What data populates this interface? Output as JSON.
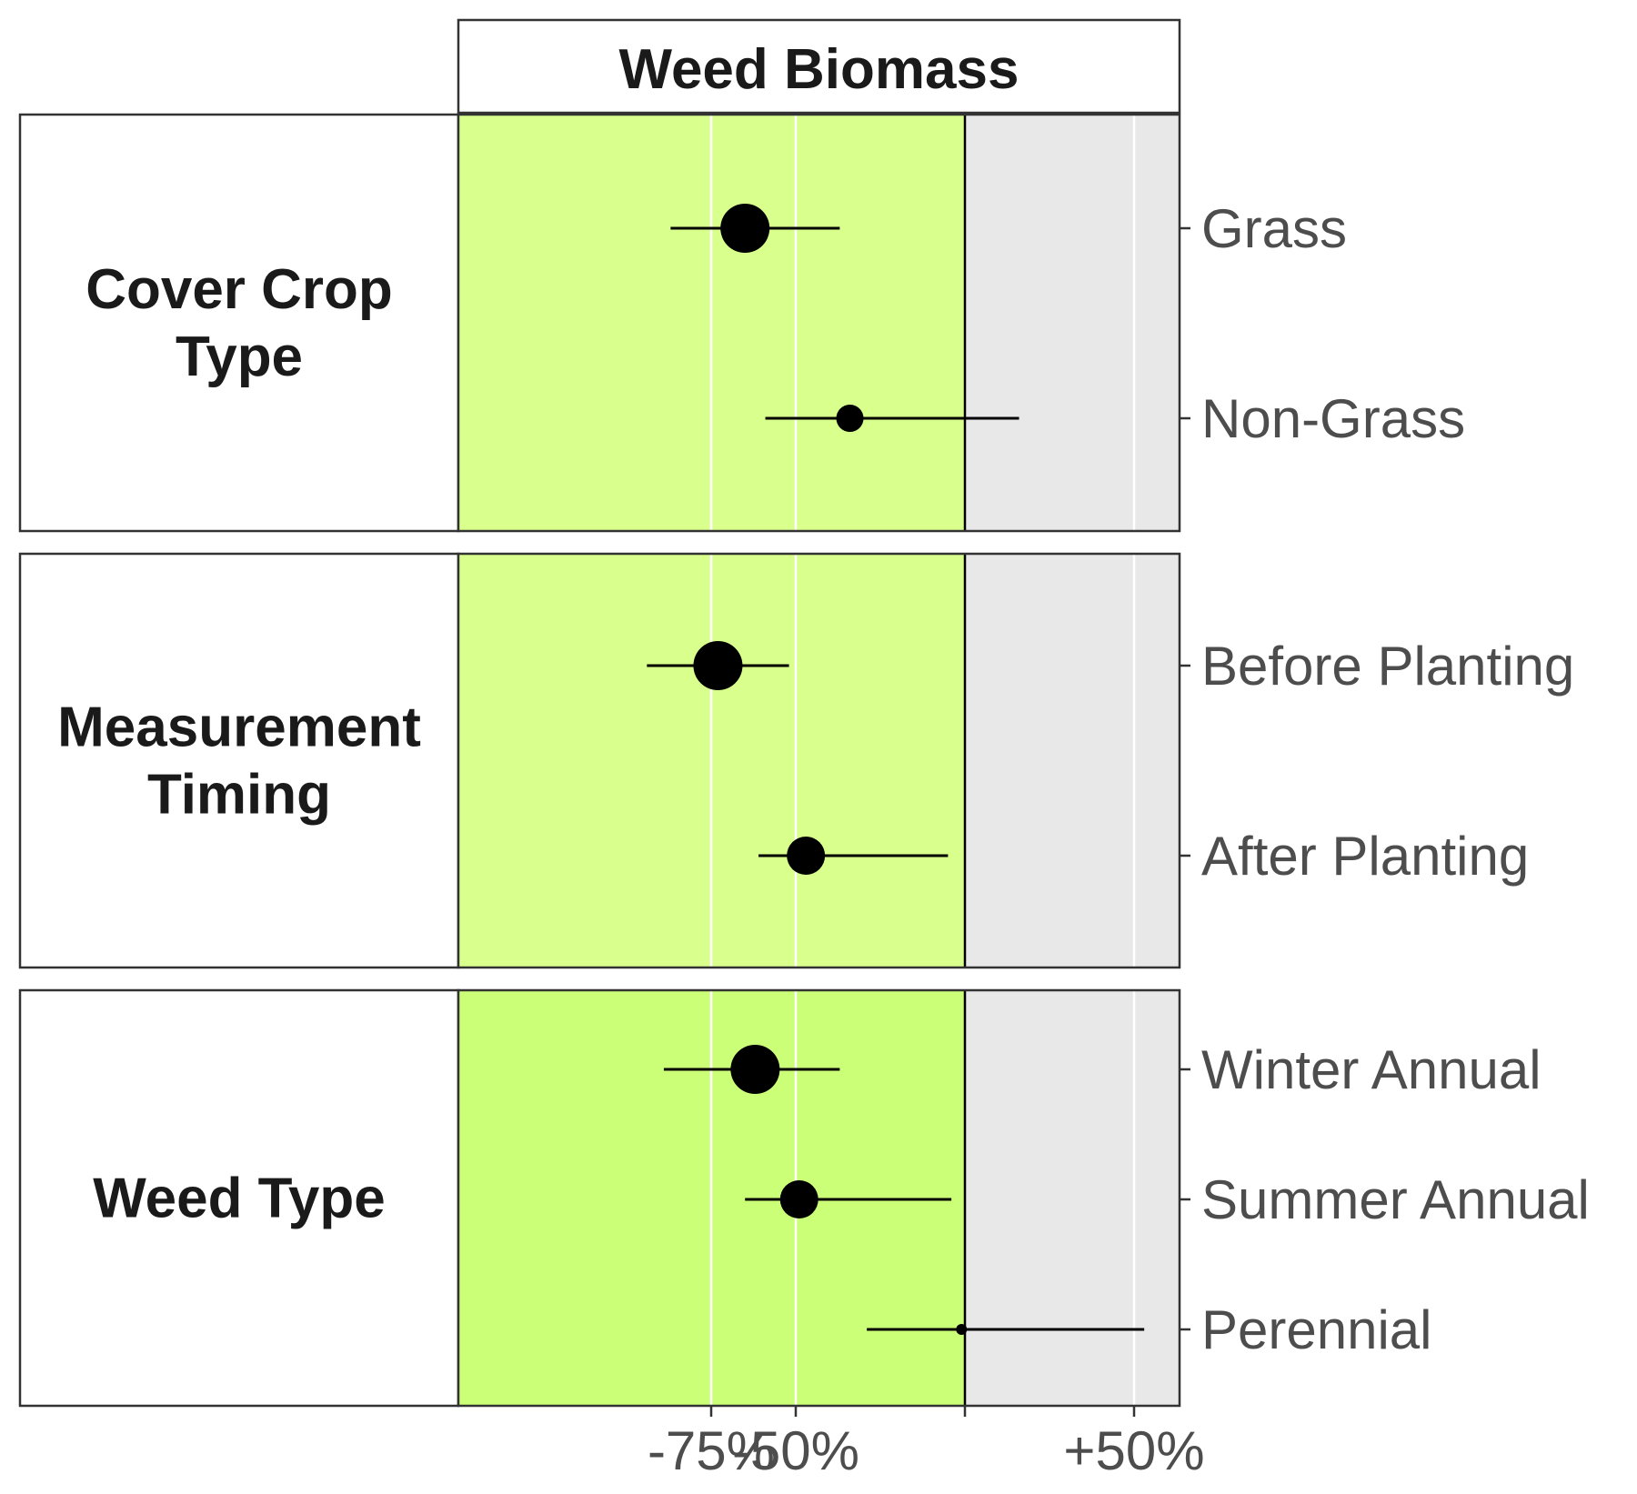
{
  "chart_data": {
    "type": "scatter",
    "title": "Weed Biomass",
    "xlim": [
      -100,
      65
    ],
    "x_ticks": [
      {
        "value": -75,
        "label": "-75%"
      },
      {
        "value": -50,
        "label": "-50%"
      },
      {
        "value": 0,
        "label": ""
      },
      {
        "value": 50,
        "label": "+50%"
      }
    ],
    "grid": true,
    "colors": {
      "negative_region": "#d9ff8c",
      "negative_region_last_panel": "#ccff78",
      "positive_region": "#e8e8e8",
      "points": "#000000"
    },
    "panels": [
      {
        "label_lines": [
          "Cover Crop",
          "Type"
        ],
        "items": [
          {
            "label": "Grass",
            "estimate": -65,
            "ci_low": -87,
            "ci_high": -37,
            "weight": 3
          },
          {
            "label": "Non-Grass",
            "estimate": -34,
            "ci_low": -59,
            "ci_high": 16,
            "weight": 2
          }
        ]
      },
      {
        "label_lines": [
          "Measurement",
          "Timing"
        ],
        "items": [
          {
            "label": "Before Planting",
            "estimate": -73,
            "ci_low": -94,
            "ci_high": -52,
            "weight": 3
          },
          {
            "label": "After Planting",
            "estimate": -47,
            "ci_low": -61,
            "ci_high": -5,
            "weight": 2.5
          }
        ]
      },
      {
        "label_lines": [
          "Weed Type"
        ],
        "items": [
          {
            "label": "Winter Annual",
            "estimate": -62,
            "ci_low": -89,
            "ci_high": -37,
            "weight": 3
          },
          {
            "label": "Summer Annual",
            "estimate": -49,
            "ci_low": -65,
            "ci_high": -4,
            "weight": 2.5
          },
          {
            "label": "Perennial",
            "estimate": -1,
            "ci_low": -29,
            "ci_high": 53,
            "weight": 1
          }
        ]
      }
    ]
  }
}
